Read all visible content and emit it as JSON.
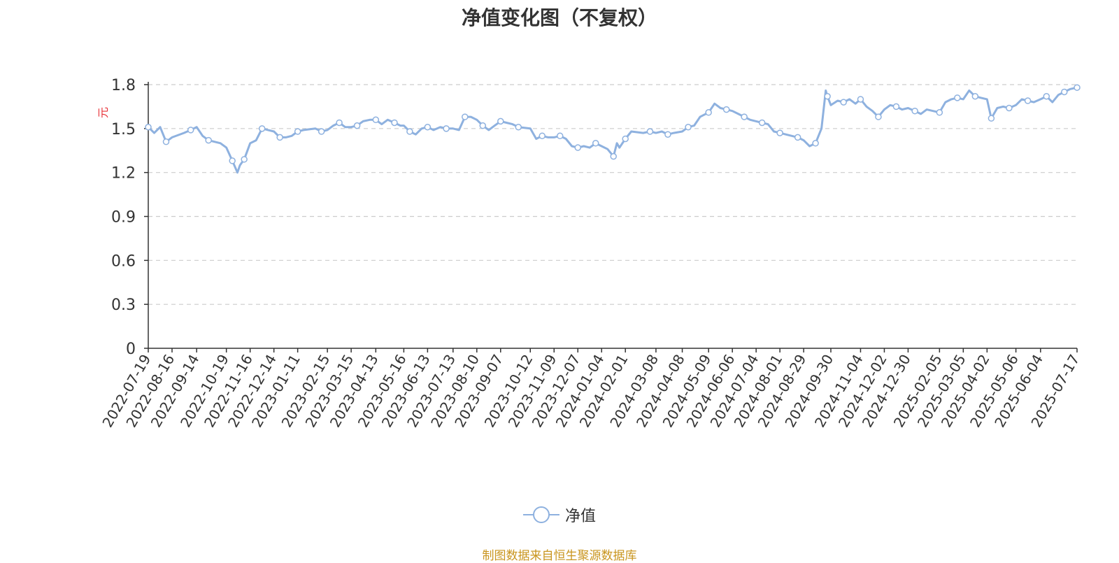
{
  "title": "净值变化图（不复权）",
  "source_note": "制图数据来自恒生聚源数据库",
  "legend_label": "净值",
  "y_unit": "元",
  "colors": {
    "series": "#8eb1df",
    "ylabel": "#e8343a",
    "title": "#333333",
    "source": "#c9951e",
    "grid": "#cccccc",
    "axis": "#333333"
  },
  "chart_data": {
    "type": "line",
    "title": "净值变化图（不复权）",
    "ylabel": "元",
    "xlabel": "",
    "ylim": [
      0,
      1.8
    ],
    "yticks": [
      "0",
      "0.3",
      "0.6",
      "0.9",
      "1.2",
      "1.5",
      "1.8"
    ],
    "grid": true,
    "legend_position": "bottom-center",
    "x_ticks": [
      "2022-07-19",
      "2022-08-16",
      "2022-09-14",
      "2022-10-19",
      "2022-11-16",
      "2022-12-14",
      "2023-01-11",
      "2023-02-15",
      "2023-03-15",
      "2023-04-13",
      "2023-05-16",
      "2023-06-13",
      "2023-07-13",
      "2023-08-10",
      "2023-09-07",
      "2023-10-12",
      "2023-11-09",
      "2023-12-07",
      "2024-01-04",
      "2024-02-01",
      "2024-03-08",
      "2024-04-08",
      "2024-05-09",
      "2024-06-06",
      "2024-07-04",
      "2024-08-01",
      "2024-08-29",
      "2024-09-30",
      "2024-11-04",
      "2024-12-02",
      "2024-12-30",
      "2025-02-05",
      "2025-03-05",
      "2025-04-02",
      "2025-05-06",
      "2025-06-04",
      "2025-07-17"
    ],
    "series": [
      {
        "name": "净值",
        "x": [
          "2022-07-19",
          "2022-07-26",
          "2022-08-02",
          "2022-08-09",
          "2022-08-16",
          "2022-08-30",
          "2022-09-07",
          "2022-09-14",
          "2022-09-21",
          "2022-09-28",
          "2022-10-12",
          "2022-10-19",
          "2022-10-26",
          "2022-11-01",
          "2022-11-04",
          "2022-11-09",
          "2022-11-16",
          "2022-11-23",
          "2022-11-30",
          "2022-12-07",
          "2022-12-14",
          "2022-12-21",
          "2022-12-28",
          "2023-01-04",
          "2023-01-11",
          "2023-01-18",
          "2023-02-01",
          "2023-02-08",
          "2023-02-15",
          "2023-02-22",
          "2023-03-01",
          "2023-03-08",
          "2023-03-15",
          "2023-03-22",
          "2023-03-29",
          "2023-04-06",
          "2023-04-13",
          "2023-04-20",
          "2023-04-27",
          "2023-05-05",
          "2023-05-12",
          "2023-05-16",
          "2023-05-23",
          "2023-05-30",
          "2023-06-06",
          "2023-06-13",
          "2023-06-20",
          "2023-06-28",
          "2023-07-05",
          "2023-07-13",
          "2023-07-20",
          "2023-07-27",
          "2023-08-03",
          "2023-08-10",
          "2023-08-17",
          "2023-08-24",
          "2023-08-31",
          "2023-09-07",
          "2023-09-14",
          "2023-09-21",
          "2023-09-28",
          "2023-10-12",
          "2023-10-19",
          "2023-10-26",
          "2023-11-02",
          "2023-11-09",
          "2023-11-16",
          "2023-11-23",
          "2023-11-30",
          "2023-12-07",
          "2023-12-14",
          "2023-12-21",
          "2023-12-28",
          "2024-01-04",
          "2024-01-11",
          "2024-01-18",
          "2024-01-22",
          "2024-01-25",
          "2024-02-01",
          "2024-02-08",
          "2024-02-22",
          "2024-03-01",
          "2024-03-08",
          "2024-03-15",
          "2024-03-22",
          "2024-03-29",
          "2024-04-08",
          "2024-04-15",
          "2024-04-22",
          "2024-04-29",
          "2024-05-09",
          "2024-05-16",
          "2024-05-23",
          "2024-05-30",
          "2024-06-06",
          "2024-06-13",
          "2024-06-20",
          "2024-06-27",
          "2024-07-04",
          "2024-07-11",
          "2024-07-18",
          "2024-07-25",
          "2024-08-01",
          "2024-08-08",
          "2024-08-15",
          "2024-08-22",
          "2024-08-29",
          "2024-09-05",
          "2024-09-12",
          "2024-09-19",
          "2024-09-24",
          "2024-09-26",
          "2024-09-30",
          "2024-10-08",
          "2024-10-15",
          "2024-10-22",
          "2024-10-29",
          "2024-11-04",
          "2024-11-11",
          "2024-11-18",
          "2024-11-25",
          "2024-12-02",
          "2024-12-09",
          "2024-12-16",
          "2024-12-23",
          "2024-12-30",
          "2025-01-07",
          "2025-01-14",
          "2025-01-21",
          "2025-02-05",
          "2025-02-12",
          "2025-02-19",
          "2025-02-26",
          "2025-03-05",
          "2025-03-12",
          "2025-03-19",
          "2025-03-26",
          "2025-04-02",
          "2025-04-07",
          "2025-04-14",
          "2025-04-21",
          "2025-04-28",
          "2025-05-06",
          "2025-05-13",
          "2025-05-20",
          "2025-05-27",
          "2025-06-04",
          "2025-06-11",
          "2025-06-18",
          "2025-06-25",
          "2025-07-02",
          "2025-07-09",
          "2025-07-17"
        ],
        "values": [
          1.51,
          1.47,
          1.51,
          1.41,
          1.44,
          1.47,
          1.49,
          1.51,
          1.45,
          1.42,
          1.4,
          1.37,
          1.28,
          1.2,
          1.25,
          1.29,
          1.4,
          1.42,
          1.5,
          1.49,
          1.48,
          1.44,
          1.44,
          1.45,
          1.48,
          1.49,
          1.5,
          1.48,
          1.49,
          1.52,
          1.54,
          1.51,
          1.51,
          1.52,
          1.55,
          1.56,
          1.56,
          1.53,
          1.56,
          1.54,
          1.52,
          1.52,
          1.48,
          1.46,
          1.5,
          1.51,
          1.49,
          1.51,
          1.5,
          1.5,
          1.49,
          1.58,
          1.58,
          1.56,
          1.52,
          1.49,
          1.52,
          1.55,
          1.54,
          1.53,
          1.51,
          1.5,
          1.43,
          1.45,
          1.44,
          1.44,
          1.45,
          1.43,
          1.38,
          1.37,
          1.38,
          1.37,
          1.4,
          1.38,
          1.36,
          1.31,
          1.4,
          1.37,
          1.43,
          1.48,
          1.47,
          1.48,
          1.47,
          1.48,
          1.46,
          1.47,
          1.48,
          1.51,
          1.52,
          1.58,
          1.61,
          1.67,
          1.64,
          1.63,
          1.62,
          1.6,
          1.58,
          1.56,
          1.55,
          1.54,
          1.53,
          1.48,
          1.47,
          1.46,
          1.45,
          1.44,
          1.42,
          1.38,
          1.4,
          1.5,
          1.76,
          1.72,
          1.66,
          1.69,
          1.68,
          1.7,
          1.67,
          1.7,
          1.65,
          1.62,
          1.58,
          1.63,
          1.66,
          1.65,
          1.63,
          1.64,
          1.62,
          1.6,
          1.63,
          1.61,
          1.68,
          1.7,
          1.71,
          1.7,
          1.76,
          1.72,
          1.71,
          1.7,
          1.57,
          1.64,
          1.65,
          1.64,
          1.66,
          1.7,
          1.69,
          1.68,
          1.7,
          1.72,
          1.68,
          1.73,
          1.75,
          1.77,
          1.78
        ]
      }
    ]
  }
}
